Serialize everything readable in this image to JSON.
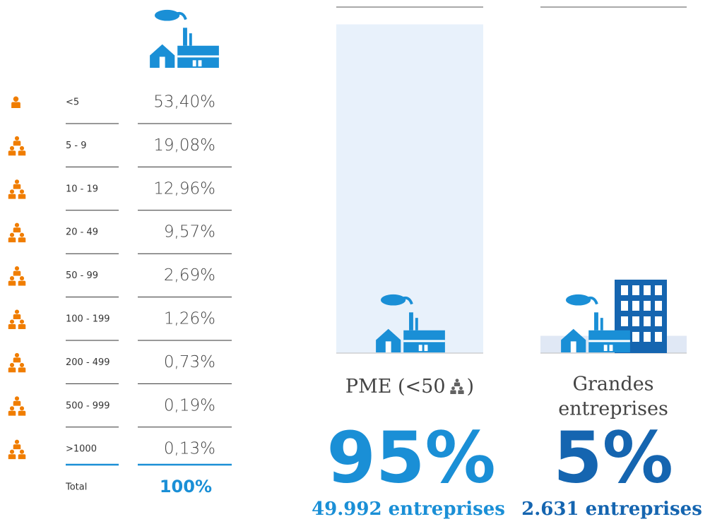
{
  "size_table": {
    "rows": [
      {
        "label": "<5",
        "value": "53,40%"
      },
      {
        "label": "5 - 9",
        "value": "19,08%"
      },
      {
        "label": "10 - 19",
        "value": "12,96%"
      },
      {
        "label": "20 - 49",
        "value": "9,57%"
      },
      {
        "label": "50 - 99",
        "value": "2,69%"
      },
      {
        "label": "100 - 199",
        "value": "1,26%"
      },
      {
        "label": "200 - 499",
        "value": "0,73%"
      },
      {
        "label": "500 - 999",
        "value": "0,19%"
      },
      {
        "label": ">1000",
        "value": "0,13%"
      }
    ],
    "total": {
      "label": "Total",
      "value": "100%"
    }
  },
  "comparison": [
    {
      "label": "PME (<50",
      "label_end": ")",
      "value": 95,
      "value_label": "95%",
      "count": "49.992 entreprises"
    },
    {
      "label_lines": [
        "Grandes",
        "entreprises"
      ],
      "value": 5,
      "value_label": "5%",
      "count": "2.631 entreprises"
    }
  ]
}
